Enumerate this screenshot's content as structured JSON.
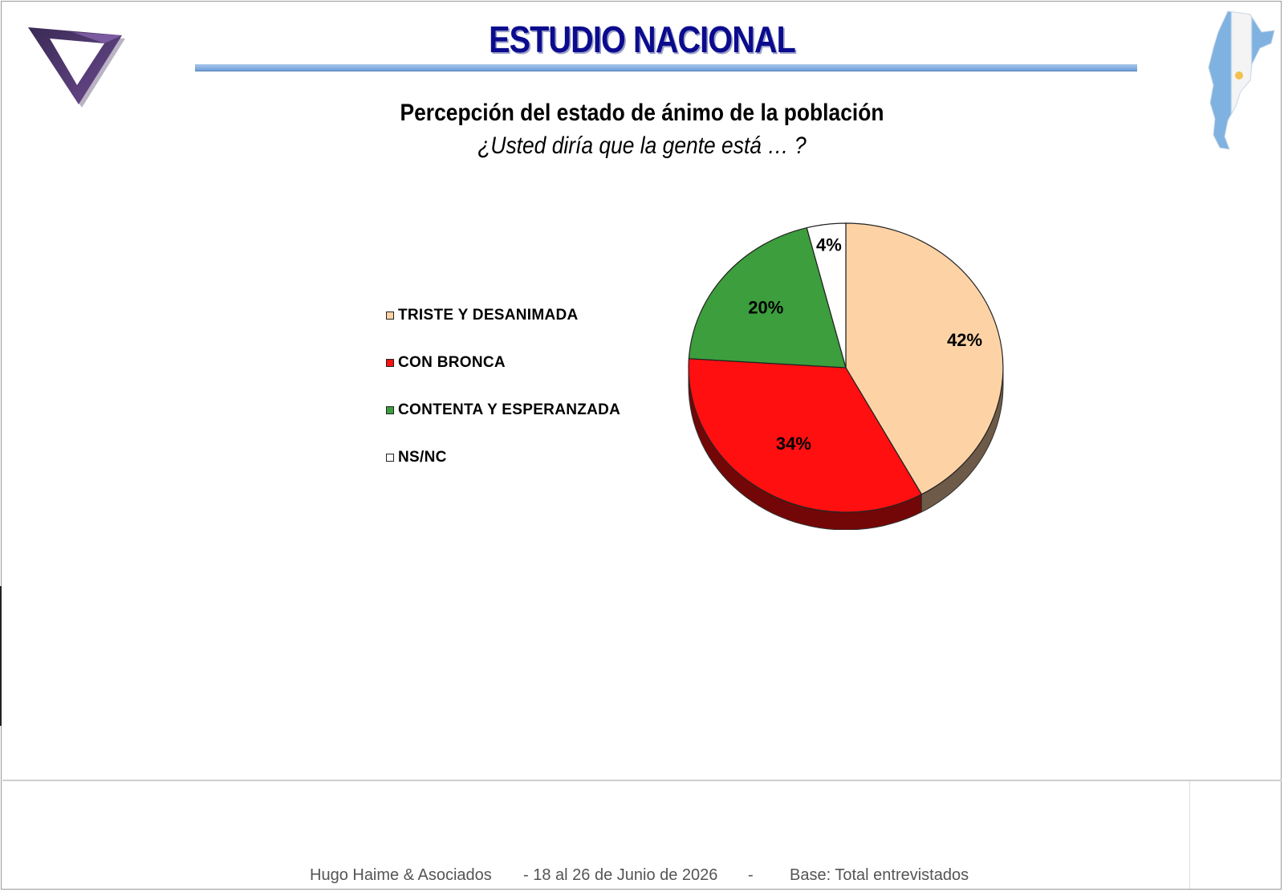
{
  "header": {
    "title": "ESTUDIO NACIONAL"
  },
  "chart_data": {
    "type": "pie",
    "title": "Percepción del estado de ánimo de la población",
    "subtitle": "¿Usted diría que la gente está … ?",
    "legend_position": "left",
    "slices": [
      {
        "name": "TRISTE Y DESANIMADA",
        "value": 42,
        "label": "42%",
        "color": "#FDD3A5"
      },
      {
        "name": "CON BRONCA",
        "value": 34,
        "label": "34%",
        "color": "#FF0F10"
      },
      {
        "name": "CONTENTA Y ESPERANZADA",
        "value": 20,
        "label": "20%",
        "color": "#3C9E3C"
      },
      {
        "name": "NS/NC",
        "value": 4,
        "label": "4%",
        "color": "#FFFFFF"
      }
    ]
  },
  "footer": {
    "source": "Hugo Haime & Asociados",
    "dates": "-  18 al 26 de Junio de 2026",
    "dash": "-",
    "base": "Base: Total entrevistados"
  },
  "icons": {
    "logo": "triangle-logo-icon",
    "map": "argentina-flag-map-icon"
  }
}
